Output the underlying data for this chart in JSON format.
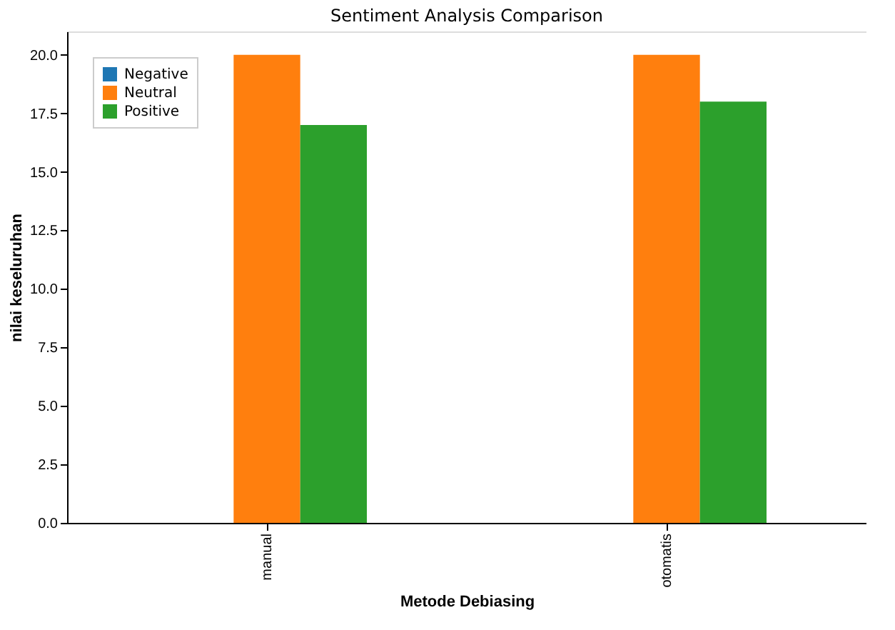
{
  "chart_data": {
    "type": "bar",
    "title": "Sentiment Analysis Comparison",
    "xlabel": "Metode Debiasing",
    "ylabel": "nilai keseluruhan",
    "categories": [
      "manual",
      "otomatis"
    ],
    "series": [
      {
        "name": "Negative",
        "color": "#1f77b4",
        "values": [
          0,
          0
        ]
      },
      {
        "name": "Neutral",
        "color": "#ff7f0e",
        "values": [
          20,
          20
        ]
      },
      {
        "name": "Positive",
        "color": "#2ca02c",
        "values": [
          17,
          18
        ]
      }
    ],
    "ylim": [
      0,
      21
    ],
    "yticks": [
      {
        "value": 0,
        "label": "0.0"
      },
      {
        "value": 2.5,
        "label": "2.5"
      },
      {
        "value": 5,
        "label": "5.0"
      },
      {
        "value": 7.5,
        "label": "7.5"
      },
      {
        "value": 10,
        "label": "10.0"
      },
      {
        "value": 12.5,
        "label": "12.5"
      },
      {
        "value": 15,
        "label": "15.0"
      },
      {
        "value": 17.5,
        "label": "17.5"
      },
      {
        "value": 20,
        "label": "20.0"
      }
    ],
    "grid": false,
    "legend": "top left"
  }
}
